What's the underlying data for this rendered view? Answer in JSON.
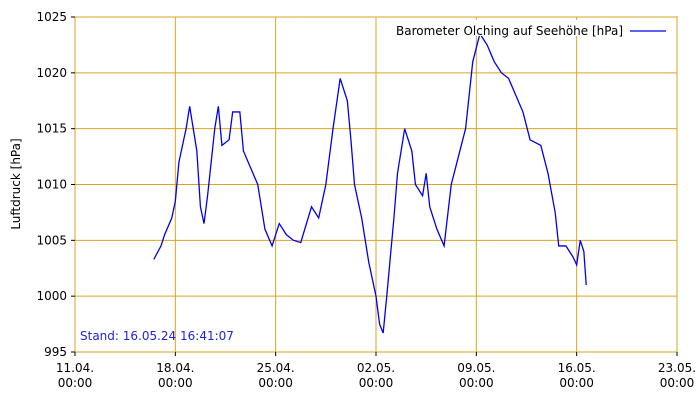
{
  "chart_data": {
    "type": "line",
    "y_label": "Luftdruck [hPa]",
    "annotation": "Stand: 16.05.24 16:41:07",
    "legend_position": "top-right",
    "grid": true,
    "grid_color": "#d9a520",
    "xlim": [
      "11.04. 00:00",
      "23.05. 00:00"
    ],
    "xticks": [
      "11.04. 00:00",
      "18.04. 00:00",
      "25.04. 00:00",
      "02.05. 00:00",
      "09.05. 00:00",
      "16.05. 00:00",
      "23.05. 00:00"
    ],
    "ylim": [
      995,
      1025
    ],
    "yticks": [
      995,
      1000,
      1005,
      1010,
      1015,
      1020,
      1025
    ],
    "x": [
      "16.04. 12:00",
      "17.04. 00:00",
      "17.04. 06:00",
      "17.04. 18:00",
      "18.04. 00:00",
      "18.04. 06:00",
      "18.04. 18:00",
      "19.04. 00:00",
      "19.04. 12:00",
      "19.04. 18:00",
      "20.04. 00:00",
      "20.04. 06:00",
      "20.04. 18:00",
      "21.04. 00:00",
      "21.04. 06:00",
      "21.04. 18:00",
      "22.04. 00:00",
      "22.04. 12:00",
      "22.04. 18:00",
      "23.04. 06:00",
      "23.04. 18:00",
      "24.04. 06:00",
      "24.04. 18:00",
      "25.04. 06:00",
      "25.04. 18:00",
      "26.04. 06:00",
      "26.04. 18:00",
      "27.04. 12:00",
      "28.04. 00:00",
      "28.04. 12:00",
      "29.04. 00:00",
      "29.04. 12:00",
      "30.04. 00:00",
      "30.04. 06:00",
      "30.04. 12:00",
      "01.05. 00:00",
      "01.05. 12:00",
      "02.05. 00:00",
      "02.05. 06:00",
      "02.05. 12:00",
      "02.05. 18:00",
      "03.05. 06:00",
      "03.05. 12:00",
      "04.05. 00:00",
      "04.05. 12:00",
      "04.05. 18:00",
      "05.05. 06:00",
      "05.05. 12:00",
      "05.05. 18:00",
      "06.05. 06:00",
      "06.05. 18:00",
      "07.05. 06:00",
      "07.05. 18:00",
      "08.05. 06:00",
      "08.05. 12:00",
      "08.05. 18:00",
      "09.05. 06:00",
      "09.05. 18:00",
      "10.05. 06:00",
      "10.05. 18:00",
      "11.05. 06:00",
      "11.05. 18:00",
      "12.05. 06:00",
      "12.05. 18:00",
      "13.05. 12:00",
      "14.05. 00:00",
      "14.05. 12:00",
      "14.05. 18:00",
      "15.05. 06:00",
      "15.05. 18:00",
      "16.05. 00:00",
      "16.05. 06:00",
      "16.05. 12:00",
      "16.05. 16:00"
    ],
    "series": [
      {
        "name": "Barometer Olching auf Seehöhe [hPa]",
        "color": "#0000ee",
        "values": [
          1003.3,
          1004.5,
          1005.5,
          1007,
          1008.5,
          1012,
          1015,
          1017,
          1013,
          1008,
          1006.5,
          1009,
          1015,
          1017,
          1013.5,
          1014,
          1016.5,
          1016.5,
          1013,
          1011.5,
          1010,
          1006,
          1004.5,
          1006.5,
          1005.5,
          1005,
          1004.8,
          1008,
          1007,
          1010,
          1015,
          1019.5,
          1017.5,
          1014,
          1010,
          1007,
          1003,
          1000,
          997.5,
          996.7,
          1000,
          1007,
          1011,
          1015,
          1013,
          1010,
          1009,
          1011,
          1008,
          1006,
          1004.5,
          1010,
          1012.5,
          1015,
          1018,
          1021,
          1023.5,
          1022.5,
          1021,
          1020,
          1019.5,
          1018,
          1016.5,
          1014,
          1013.5,
          1011,
          1007.5,
          1004.5,
          1004.5,
          1003.5,
          1002.8,
          1005,
          1004,
          1001
        ]
      }
    ]
  }
}
